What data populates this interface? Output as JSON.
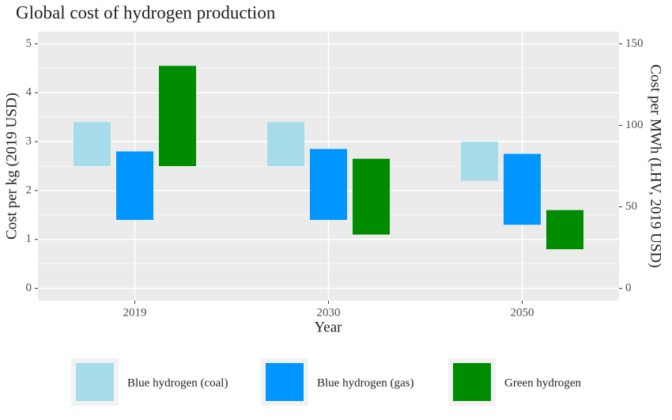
{
  "chart_data": {
    "type": "floating_bar",
    "title": "Global cost of hydrogen production",
    "x_label": "Year",
    "y_label": "Cost per kg (2019 USD)",
    "y2_label": "Cost per MWh (LHV, 2019 USD)",
    "categories": [
      "2019",
      "2030",
      "2050"
    ],
    "series": [
      {
        "name": "Blue hydrogen (coal)",
        "color": "#a6dce9",
        "low": [
          2.5,
          2.5,
          2.2
        ],
        "high": [
          3.4,
          3.4,
          3.0
        ]
      },
      {
        "name": "Blue hydrogen (gas)",
        "color": "#0096ff",
        "low": [
          1.4,
          1.4,
          1.3
        ],
        "high": [
          2.8,
          2.85,
          2.75
        ]
      },
      {
        "name": "Green hydrogen",
        "color": "#008c00",
        "low": [
          2.5,
          1.1,
          0.8
        ],
        "high": [
          4.55,
          2.65,
          1.6
        ]
      }
    ],
    "ylim": [
      -0.25,
      5.25
    ],
    "yticks": [
      0,
      1,
      2,
      3,
      4,
      5
    ],
    "y2lim": [
      -7.5,
      157.5
    ],
    "y2ticks": [
      0,
      50,
      100,
      150
    ],
    "grid": true,
    "minor_grid": true,
    "legend": "bottom"
  }
}
